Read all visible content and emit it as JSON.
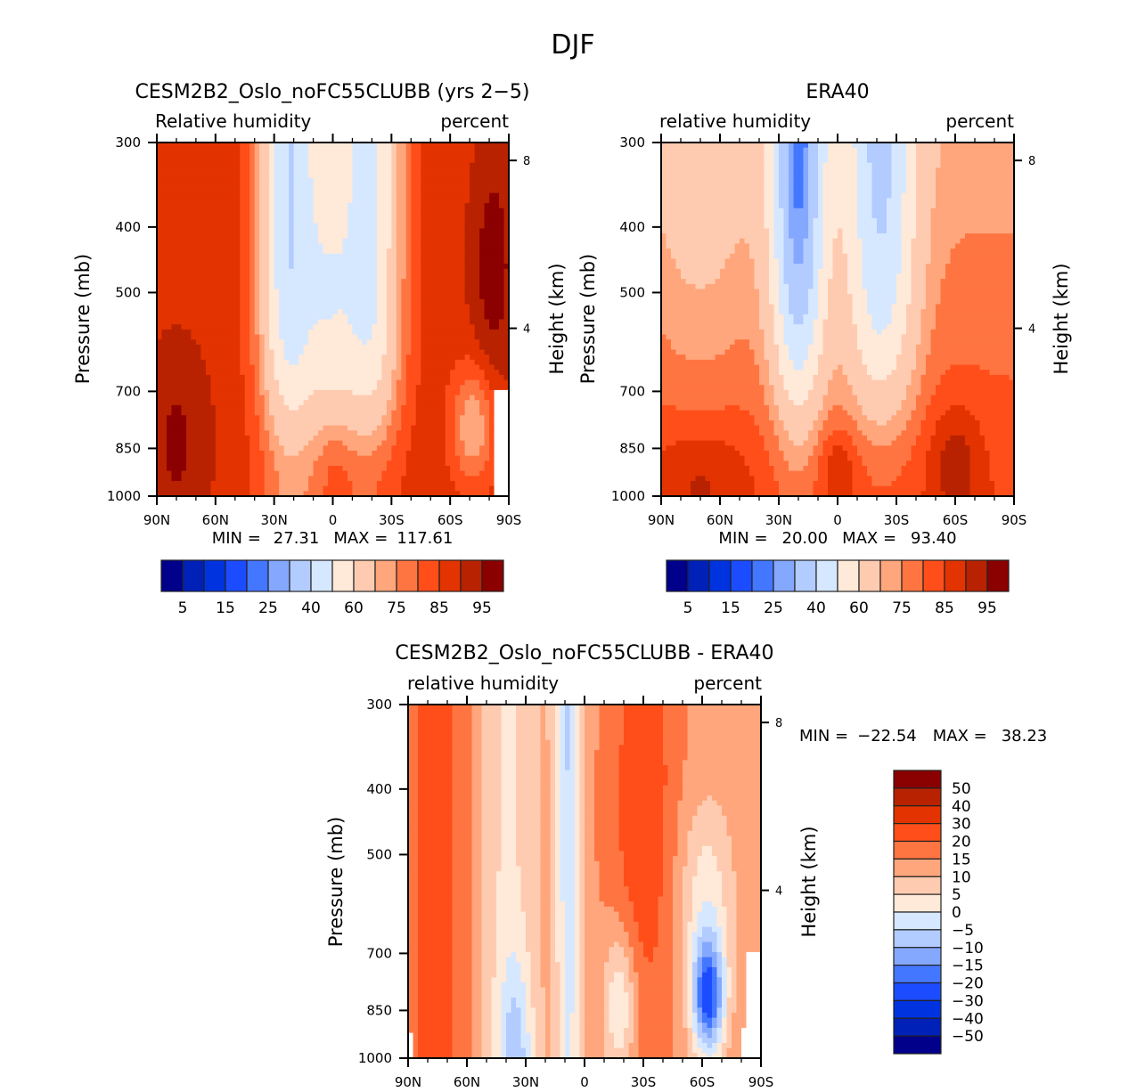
{
  "figure": {
    "suptitle": "DJF"
  },
  "palette": [
    "#00008b",
    "#0021b8",
    "#0033e0",
    "#1c4cff",
    "#4477ff",
    "#85a8ff",
    "#b3ccff",
    "#d6e8ff",
    "#ffe9d8",
    "#ffcbb0",
    "#ffa67c",
    "#ff7542",
    "#ff4e19",
    "#e33300",
    "#b82200",
    "#8b0000"
  ],
  "chart_data": [
    {
      "type": "heatmap",
      "id": "model",
      "title": "CESM2B2_Oslo_noFC55CLUBB (yrs 2-5)",
      "left_label": "Relative humidity",
      "right_label": "percent",
      "xlabel": "",
      "ylabel": "Pressure (mb)",
      "y2label": "Height (km)",
      "x_ticks": [
        "90N",
        "60N",
        "30N",
        "0",
        "30S",
        "60S",
        "90S"
      ],
      "x_range": [
        90,
        -90
      ],
      "y_ticks": [
        300,
        400,
        500,
        700,
        850,
        1000
      ],
      "y_range": [
        300,
        1000
      ],
      "y2_ticks": [
        8,
        4
      ],
      "min_label": "MIN =",
      "min_value": "27.31",
      "max_label": "MAX =",
      "max_value": "117.61",
      "levels": [
        5,
        10,
        15,
        20,
        25,
        30,
        40,
        50,
        60,
        70,
        75,
        80,
        85,
        90,
        95
      ],
      "colorbar_labels": [
        "5",
        "15",
        "25",
        "40",
        "60",
        "75",
        "85",
        "95"
      ],
      "colorbar_orientation": "horizontal"
    },
    {
      "type": "heatmap",
      "id": "obs",
      "title": "ERA40",
      "left_label": "relative humidity",
      "right_label": "percent",
      "xlabel": "",
      "ylabel": "Pressure (mb)",
      "y2label": "Height (km)",
      "x_ticks": [
        "90N",
        "60N",
        "30N",
        "0",
        "30S",
        "60S",
        "90S"
      ],
      "x_range": [
        90,
        -90
      ],
      "y_ticks": [
        300,
        400,
        500,
        700,
        850,
        1000
      ],
      "y_range": [
        300,
        1000
      ],
      "y2_ticks": [
        8,
        4
      ],
      "min_label": "MIN =",
      "min_value": "20.00",
      "max_label": "MAX =",
      "max_value": "93.40",
      "levels": [
        5,
        10,
        15,
        20,
        25,
        30,
        40,
        50,
        60,
        70,
        75,
        80,
        85,
        90,
        95
      ],
      "colorbar_labels": [
        "5",
        "15",
        "25",
        "40",
        "60",
        "75",
        "85",
        "95"
      ],
      "colorbar_orientation": "horizontal"
    },
    {
      "type": "heatmap",
      "id": "diff",
      "title": "CESM2B2_Oslo_noFC55CLUBB - ERA40",
      "left_label": "relative humidity",
      "right_label": "percent",
      "xlabel": "",
      "ylabel": "Pressure (mb)",
      "y2label": "Height (km)",
      "x_ticks": [
        "90N",
        "60N",
        "30N",
        "0",
        "30S",
        "60S",
        "90S"
      ],
      "x_range": [
        90,
        -90
      ],
      "y_ticks": [
        300,
        400,
        500,
        700,
        850,
        1000
      ],
      "y_range": [
        300,
        1000
      ],
      "y2_ticks": [
        8,
        4
      ],
      "min_label": "MIN =",
      "min_value": "-22.54",
      "max_label": "MAX =",
      "max_value": "38.23",
      "levels": [
        -50,
        -40,
        -30,
        -20,
        -15,
        -10,
        -5,
        0,
        5,
        10,
        15,
        20,
        30,
        40,
        50
      ],
      "colorbar_labels": [
        "50",
        "40",
        "30",
        "20",
        "15",
        "10",
        "5",
        "0",
        "-5",
        "-10",
        "-15",
        "-20",
        "-30",
        "-40",
        "-50"
      ],
      "colorbar_orientation": "vertical"
    }
  ]
}
